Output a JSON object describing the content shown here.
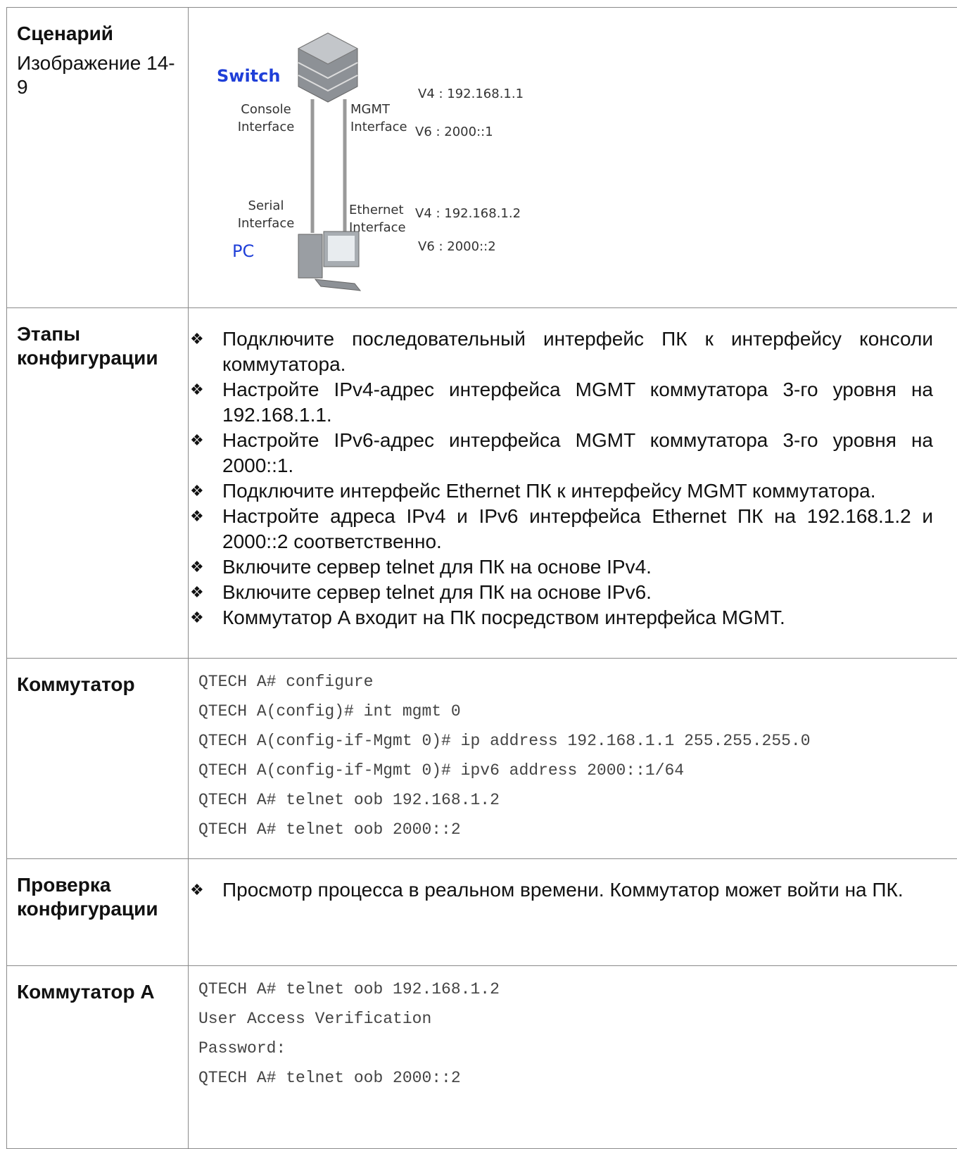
{
  "rows": [
    {
      "label": "Сценарий",
      "caption": "Изображение 14-9",
      "diagram": {
        "switch": "Switch",
        "pc": "PC",
        "console": [
          "Console",
          "Interface"
        ],
        "mgmt": [
          "MGMT",
          "Interface"
        ],
        "serial": [
          "Serial",
          "Interface"
        ],
        "ethernet": [
          "Ethernet",
          "Interface"
        ],
        "sw_v4": "V4 : 192.168.1.1",
        "sw_v6": "V6 : 2000::1",
        "pc_v4": "V4 : 192.168.1.2",
        "pc_v6": "V6 : 2000::2"
      }
    },
    {
      "label": "Этапы конфигурации",
      "bullets": [
        "Подключите последовательный интерфейс ПК к интерфейсу консоли коммутатора.",
        "Настройте IPv4-адрес интерфейса MGMT коммутатора 3-го уровня на 192.168.1.1.",
        "Настройте IPv6-адрес интерфейса MGMT коммутатора 3-го уровня на 2000::1.",
        "Подключите интерфейс Ethernet ПК к интерфейсу MGMT коммутатора.",
        "Настройте адреса IPv4 и IPv6 интерфейса Ethernet ПК на 192.168.1.2 и 2000::2 соответственно.",
        "Включите сервер telnet для ПК на основе IPv4.",
        "Включите сервер telnet для ПК на основе IPv6.",
        "Коммутатор A входит на ПК посредством интерфейса MGMT."
      ]
    },
    {
      "label": "Коммутатор",
      "code": [
        "QTECH A# configure",
        "QTECH A(config)# int mgmt 0",
        "QTECH A(config-if-Mgmt 0)# ip address 192.168.1.1 255.255.255.0",
        "QTECH A(config-if-Mgmt 0)# ipv6 address 2000::1/64",
        "QTECH A# telnet oob 192.168.1.2",
        "QTECH A# telnet oob 2000::2"
      ]
    },
    {
      "label": "Проверка конфигурации",
      "bullets": [
        "Просмотр процесса в реальном времени. Коммутатор может войти на ПК."
      ]
    },
    {
      "label": "Коммутатор A",
      "code": [
        "QTECH A# telnet oob 192.168.1.2",
        "User Access Verification",
        "Password:",
        "QTECH A# telnet oob 2000::2"
      ]
    }
  ]
}
